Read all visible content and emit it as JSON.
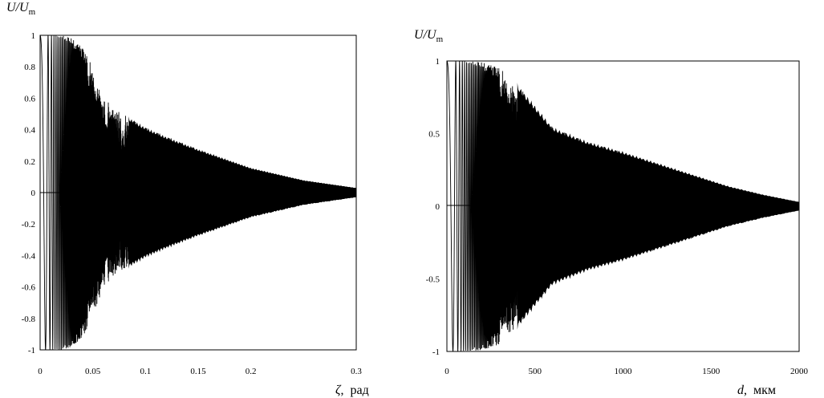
{
  "chart_data": [
    {
      "type": "line",
      "title": "",
      "xlabel": {
        "symbol": "ζ",
        "unit": "рад"
      },
      "ylabel": {
        "base": "U/U",
        "sub": "m"
      },
      "xlim": [
        0,
        0.3
      ],
      "ylim": [
        -1,
        1
      ],
      "xticks": [
        "0",
        "0.05",
        "0.1",
        "0.15",
        "0.2",
        "0.3"
      ],
      "xtick_values": [
        0,
        0.05,
        0.1,
        0.15,
        0.2,
        0.3
      ],
      "yticks": [
        "1",
        "0.8",
        "0.6",
        "0.4",
        "0.2",
        "0",
        "-0.2",
        "-0.4",
        "-0.6",
        "-0.8",
        "-1"
      ],
      "ytick_values": [
        1,
        0.8,
        0.6,
        0.4,
        0.2,
        0,
        -0.2,
        -0.4,
        -0.6,
        -0.8,
        -1
      ],
      "grid": false,
      "series": [
        {
          "signal": "dense oscillation; envelope decays from ±1 to ~0",
          "envelope": {
            "x": [
              0.0,
              0.01,
              0.02,
              0.03,
              0.04,
              0.05,
              0.06,
              0.07,
              0.08,
              0.1,
              0.12,
              0.15,
              0.2,
              0.25,
              0.3
            ],
            "y": [
              1.0,
              1.0,
              1.0,
              0.98,
              0.92,
              0.8,
              0.62,
              0.54,
              0.5,
              0.42,
              0.36,
              0.28,
              0.16,
              0.08,
              0.03
            ]
          }
        }
      ]
    },
    {
      "type": "line",
      "title": "",
      "xlabel": {
        "symbol": "d",
        "unit": "мкм"
      },
      "ylabel": {
        "base": "U/U",
        "sub": "m"
      },
      "xlim": [
        0,
        2000
      ],
      "ylim": [
        -1,
        1
      ],
      "xticks": [
        "0",
        "500",
        "1000",
        "1500",
        "2000"
      ],
      "xtick_values": [
        0,
        500,
        1000,
        1500,
        2000
      ],
      "yticks": [
        "1",
        "0.5",
        "0",
        "-0.5",
        "-1"
      ],
      "ytick_values": [
        1,
        0.5,
        0,
        -0.5,
        -1
      ],
      "grid": false,
      "series": [
        {
          "signal": "dense oscillation; envelope decays from ±1 to ~0",
          "envelope": {
            "x": [
              0,
              100,
              200,
              300,
              400,
              500,
              600,
              700,
              800,
              1000,
              1200,
              1400,
              1600,
              1800,
              2000
            ],
            "y": [
              1.0,
              1.0,
              0.99,
              0.95,
              0.85,
              0.7,
              0.55,
              0.5,
              0.45,
              0.38,
              0.3,
              0.22,
              0.14,
              0.08,
              0.03
            ]
          }
        }
      ]
    }
  ]
}
